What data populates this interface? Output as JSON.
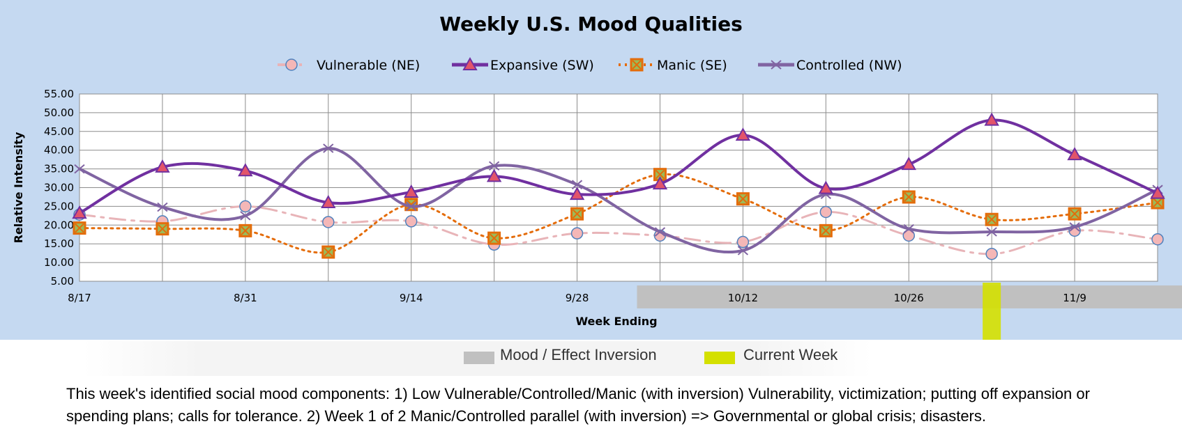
{
  "chart_data": {
    "type": "line",
    "title": "Weekly U.S. Mood Qualities",
    "xlabel": "Week Ending",
    "ylabel": "Relative Intensity",
    "ylim": [
      5,
      55
    ],
    "yticks": [
      "55.00",
      "50.00",
      "45.00",
      "40.00",
      "35.00",
      "30.00",
      "25.00",
      "20.00",
      "15.00",
      "10.00",
      "5.00"
    ],
    "x_tick_labels": [
      "8/17",
      "8/31",
      "9/14",
      "9/28",
      "10/12",
      "10/26",
      "11/9"
    ],
    "x_tick_indices": [
      0,
      2,
      4,
      6,
      8,
      10,
      12
    ],
    "n_points": 14,
    "grid": true,
    "legend_position": "top",
    "inversion_range": [
      7,
      13
    ],
    "current_week_index": 11,
    "series": [
      {
        "name": "Vulnerable (NE)",
        "color": "#e8b4b8",
        "marker": "circle",
        "dash": "dashdot",
        "values": [
          22.8,
          21.0,
          25.0,
          20.8,
          21.0,
          14.8,
          17.8,
          17.2,
          15.5,
          23.5,
          17.2,
          12.3,
          18.5,
          16.2
        ]
      },
      {
        "name": "Expansive (SW)",
        "color": "#7030a0",
        "marker": "triangle",
        "dash": "solid",
        "values": [
          23.2,
          35.5,
          34.5,
          26.0,
          28.8,
          33.0,
          28.2,
          31.0,
          44.0,
          29.8,
          36.2,
          48.0,
          38.8,
          28.5
        ]
      },
      {
        "name": "Manic (SE)",
        "color": "#e46c0a",
        "marker": "square",
        "dash": "dotted",
        "values": [
          19.2,
          19.0,
          18.5,
          12.8,
          25.5,
          16.5,
          23.0,
          33.5,
          27.0,
          18.5,
          27.5,
          21.5,
          23.0,
          26.0
        ]
      },
      {
        "name": "Controlled (NW)",
        "color": "#8064a2",
        "marker": "x",
        "dash": "solid",
        "values": [
          35.0,
          24.8,
          22.5,
          40.5,
          25.0,
          35.8,
          30.8,
          18.2,
          13.2,
          28.2,
          19.0,
          18.2,
          19.5,
          29.5
        ]
      }
    ]
  },
  "key": {
    "inversion_label": "Mood / Effect Inversion",
    "current_label": "Current Week",
    "inversion_color": "#c0c0c0",
    "current_color": "#d4e000"
  },
  "note": "This week's identified social mood components: 1) Low Vulnerable/Controlled/Manic (with inversion) Vulnerability, victimization; putting off expansion or spending plans; calls for tolerance.  2) Week 1 of 2 Manic/Controlled parallel (with inversion) => Governmental or global crisis; disasters."
}
